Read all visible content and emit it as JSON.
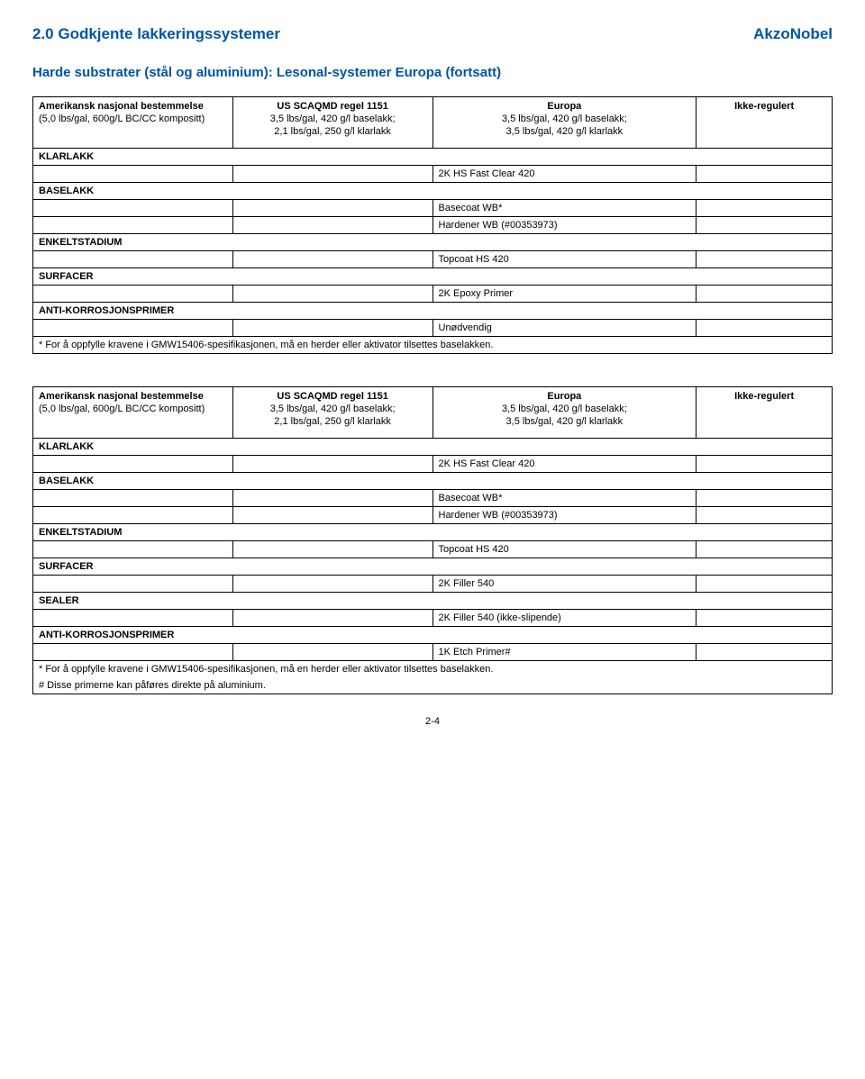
{
  "colors": {
    "section_title": "#0055a4",
    "brand": "#0055a4",
    "subtitle": "#0055a4",
    "text": "#000000",
    "border": "#000000",
    "background": "#ffffff"
  },
  "header": {
    "section_title": "2.0 Godkjente lakkeringssystemer",
    "brand": "AkzoNobel",
    "subtitle": "Harde substrater (stål og aluminium): Lesonal-systemer Europa (fortsatt)"
  },
  "table_columns": {
    "col1_title": "Amerikansk nasjonal bestemmelse",
    "col1_sub": "(5,0 lbs/gal, 600g/L BC/CC kompositt)",
    "col2_title": "US SCAQMD regel 1151",
    "col2_sub1": "3,5 lbs/gal, 420 g/l baselakk;",
    "col2_sub2": "2,1 lbs/gal, 250 g/l klarlakk",
    "col3_title": "Europa",
    "col3_sub1": "3,5 lbs/gal, 420 g/l baselakk;",
    "col3_sub2": "3,5 lbs/gal, 420 g/l klarlakk",
    "col4_title": "Ikke-regulert"
  },
  "table1": {
    "sections": {
      "klarlakk": {
        "label": "KLARLAKK",
        "value": "2K HS Fast Clear 420"
      },
      "baselakk": {
        "label": "BASELAKK",
        "values": [
          "Basecoat WB*",
          "Hardener WB (#00353973)"
        ]
      },
      "enkeltstadium": {
        "label": "ENKELTSTADIUM",
        "value": "Topcoat HS 420"
      },
      "surfacer": {
        "label": "SURFACER",
        "value": "2K Epoxy Primer"
      },
      "antikorr": {
        "label": "ANTI-KORROSJONSPRIMER",
        "value": "Unødvendig"
      }
    },
    "footnote": "* For å oppfylle kravene i GMW15406-spesifikasjonen, må en herder eller aktivator tilsettes baselakken."
  },
  "table2": {
    "sections": {
      "klarlakk": {
        "label": "KLARLAKK",
        "value": "2K HS Fast Clear 420"
      },
      "baselakk": {
        "label": "BASELAKK",
        "values": [
          "Basecoat WB*",
          "Hardener WB (#00353973)"
        ]
      },
      "enkeltstadium": {
        "label": "ENKELTSTADIUM",
        "value": "Topcoat HS 420"
      },
      "surfacer": {
        "label": "SURFACER",
        "value": "2K Filler 540"
      },
      "sealer": {
        "label": "SEALER",
        "value": "2K Filler 540 (ikke-slipende)"
      },
      "antikorr": {
        "label": "ANTI-KORROSJONSPRIMER",
        "value": "1K Etch Primer#"
      }
    },
    "footnote1": "* For å oppfylle kravene i GMW15406-spesifikasjonen, må en herder eller aktivator tilsettes baselakken.",
    "footnote2": "# Disse primerne kan påføres direkte på aluminium."
  },
  "page_number": "2-4"
}
